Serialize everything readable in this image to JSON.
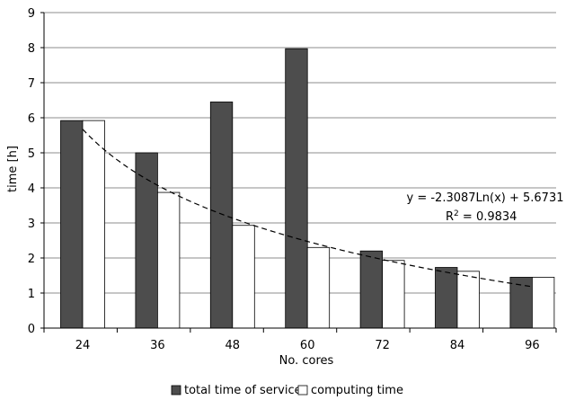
{
  "chart_data": {
    "type": "bar",
    "xlabel": "No. cores",
    "ylabel": "time [h]",
    "ylim": [
      0,
      9
    ],
    "yticks": [
      0,
      1,
      2,
      3,
      4,
      5,
      6,
      7,
      8,
      9
    ],
    "grid": "horizontal",
    "legend_position": "bottom",
    "categories": [
      "24",
      "36",
      "48",
      "60",
      "72",
      "84",
      "96"
    ],
    "series": [
      {
        "name": "total time of service",
        "color": "#4d4d4d",
        "values": [
          5.92,
          5.0,
          6.45,
          7.97,
          2.2,
          1.73,
          1.45
        ]
      },
      {
        "name": "computing time",
        "color": "#ffffff",
        "values": [
          5.92,
          3.87,
          2.93,
          2.3,
          1.93,
          1.62,
          1.45
        ]
      }
    ],
    "trendline": {
      "type": "logarithmic",
      "style": "dashed",
      "a": -2.3087,
      "b": 5.6731,
      "equation": "y = -2.3087Ln(x) + 5.6731",
      "r2_label": "R",
      "r2_sup": "2",
      "r2_value": " = 0.9834"
    }
  }
}
